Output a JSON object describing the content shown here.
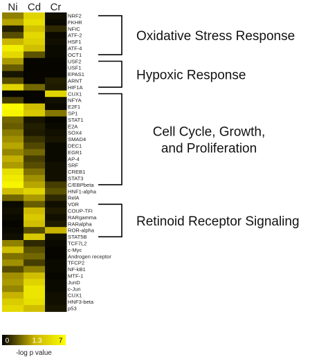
{
  "chart_data": {
    "type": "heatmap",
    "columns": [
      "Ni",
      "Cd",
      "Cr"
    ],
    "rows": [
      "NRF2",
      "FKHR",
      "NFIC",
      "ATF-2",
      "HSF1",
      "ATF-4",
      "OCT1",
      "USF2",
      "USF1",
      "EPAS1",
      "ARNT",
      "HIF1A",
      "CUX1",
      "NFYA",
      "E2F1",
      "SP1",
      "STAT1",
      "E2A",
      "SOX4",
      "SMAD4",
      "DEC1",
      "EGR1",
      "AP-4",
      "SRF",
      "CREB1",
      "STAT3",
      "C/EBPbeta",
      "HNF1-alpha",
      "RelA",
      "VDR",
      "COUP-TFI",
      "RARgamma",
      "RARalpha",
      "ROR-alpha",
      "STAT5B",
      "TCF7L2",
      "c-Myc",
      "Androgen receptor",
      "TFCP2",
      "NF-kB1",
      "MTF-1",
      "JunD",
      "c-Jun",
      "CUX1",
      "HNF3-beta",
      "p53"
    ],
    "values": [
      [
        2.5,
        5.0,
        0.3
      ],
      [
        3.2,
        5.5,
        0.2
      ],
      [
        0.6,
        4.2,
        0.8
      ],
      [
        1.5,
        5.2,
        0.2
      ],
      [
        3.6,
        4.8,
        0.3
      ],
      [
        6.2,
        4.0,
        0.2
      ],
      [
        5.2,
        1.6,
        0.2
      ],
      [
        3.0,
        0.1,
        0.1
      ],
      [
        1.8,
        0.1,
        0.1
      ],
      [
        0.4,
        0.1,
        0.1
      ],
      [
        1.5,
        0.1,
        0.6
      ],
      [
        5.0,
        2.0,
        0.5
      ],
      [
        0.1,
        0.1,
        5.0
      ],
      [
        1.2,
        0.1,
        0.3
      ],
      [
        6.8,
        4.0,
        0.2
      ],
      [
        6.5,
        4.5,
        2.3
      ],
      [
        2.0,
        0.4,
        0.1
      ],
      [
        1.8,
        0.6,
        0.2
      ],
      [
        2.4,
        0.5,
        0.3
      ],
      [
        2.8,
        1.0,
        0.4
      ],
      [
        3.2,
        1.4,
        0.2
      ],
      [
        2.6,
        2.0,
        0.2
      ],
      [
        3.4,
        1.2,
        0.2
      ],
      [
        3.0,
        1.5,
        0.3
      ],
      [
        5.5,
        2.2,
        0.3
      ],
      [
        6.0,
        2.8,
        0.3
      ],
      [
        6.5,
        3.2,
        1.2
      ],
      [
        4.0,
        5.0,
        1.6
      ],
      [
        2.0,
        3.0,
        0.8
      ],
      [
        0.2,
        1.8,
        0.3
      ],
      [
        0.3,
        3.8,
        0.5
      ],
      [
        0.2,
        4.5,
        0.3
      ],
      [
        0.1,
        4.0,
        0.5
      ],
      [
        0.2,
        1.5,
        3.5
      ],
      [
        0.3,
        4.5,
        0.3
      ],
      [
        2.5,
        0.8,
        0.2
      ],
      [
        4.0,
        1.6,
        0.1
      ],
      [
        2.2,
        2.0,
        0.1
      ],
      [
        2.8,
        1.2,
        0.2
      ],
      [
        1.5,
        2.5,
        0.2
      ],
      [
        2.8,
        4.0,
        0.1
      ],
      [
        3.0,
        5.0,
        0.2
      ],
      [
        2.6,
        5.8,
        0.2
      ],
      [
        3.5,
        5.8,
        0.3
      ],
      [
        4.6,
        5.5,
        0.3
      ],
      [
        5.2,
        4.0,
        0.4
      ]
    ],
    "groups": [
      {
        "label_lines": [
          "Oxidative Stress Response"
        ],
        "start": 0,
        "end": 6
      },
      {
        "label_lines": [
          "Hypoxic Response"
        ],
        "start": 7,
        "end": 11
      },
      {
        "label_lines": [
          "Cell Cycle, Growth,",
          "and Proliferation"
        ],
        "start": 12,
        "end": 26
      },
      {
        "label_lines": [
          "Retinoid Receptor Signaling"
        ],
        "start": 29,
        "end": 34
      }
    ],
    "colorbar": {
      "ticks": [
        "0",
        "1.3",
        "7"
      ],
      "label": "-log p value",
      "min": 0,
      "max": 7,
      "colors": [
        "#000000",
        "#c8b400",
        "#ffff00"
      ]
    }
  }
}
